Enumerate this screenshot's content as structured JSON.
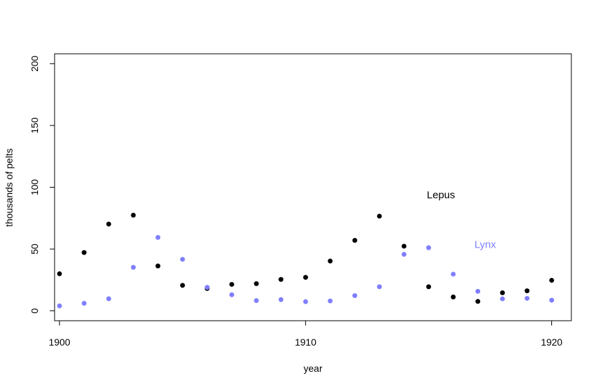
{
  "chart_data": {
    "type": "scatter",
    "title": "",
    "xlabel": "year",
    "ylabel": "thousands of pelts",
    "xlim": [
      1899.8,
      1920.8
    ],
    "ylim": [
      -8,
      208
    ],
    "x_ticks": [
      1900,
      1910,
      1920
    ],
    "x_tick_labels": [
      "1900",
      "1910",
      "1920"
    ],
    "y_ticks": [
      0,
      50,
      100,
      150,
      200
    ],
    "y_tick_labels": [
      "0",
      "50",
      "100",
      "150",
      "200"
    ],
    "grid": false,
    "series": [
      {
        "name": "Lepus",
        "color": "#000000",
        "x": [
          1900,
          1901,
          1902,
          1903,
          1904,
          1905,
          1906,
          1907,
          1908,
          1909,
          1910,
          1911,
          1912,
          1913,
          1914,
          1915,
          1916,
          1917,
          1918,
          1919,
          1920
        ],
        "y": [
          30,
          47.2,
          70.2,
          77.4,
          36.3,
          20.6,
          18.1,
          21.4,
          22,
          25.4,
          27.1,
          40.3,
          57,
          76.6,
          52.3,
          19.5,
          11.2,
          7.6,
          14.6,
          16.2,
          24.7
        ]
      },
      {
        "name": "Lynx",
        "color": "#7f7fff",
        "x": [
          1900,
          1901,
          1902,
          1903,
          1904,
          1905,
          1906,
          1907,
          1908,
          1909,
          1910,
          1911,
          1912,
          1913,
          1914,
          1915,
          1916,
          1917,
          1918,
          1919,
          1920
        ],
        "y": [
          4,
          6.1,
          9.8,
          35.2,
          59.4,
          41.7,
          19,
          13,
          8.3,
          9.1,
          7.4,
          8,
          12.3,
          19.5,
          45.7,
          51.1,
          29.7,
          15.8,
          9.7,
          10.1,
          8.6
        ]
      }
    ],
    "annotations": [
      {
        "text": "Lepus",
        "x": 1915.5,
        "y": 91,
        "color": "#000000"
      },
      {
        "text": "Lynx",
        "x": 1917.3,
        "y": 51,
        "color": "#7f7fff"
      }
    ]
  }
}
